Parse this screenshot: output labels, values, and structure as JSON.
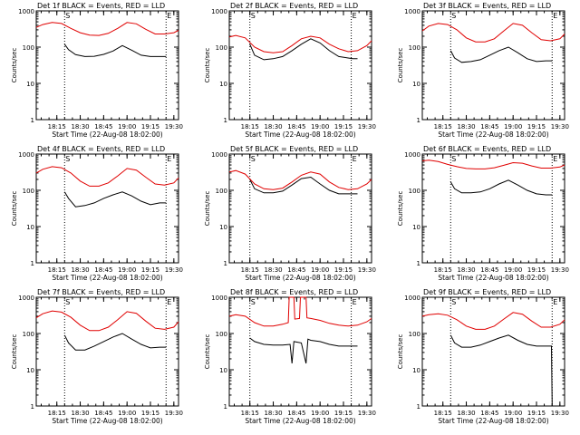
{
  "chart_data": [
    {
      "type": "line",
      "title": "Det 1f BLACK = Events, RED = LLD",
      "xlabel": "Start Time (22-Aug-08 18:02:00)",
      "ylabel": "Counts/sec",
      "ylim": [
        1,
        1000
      ],
      "yscale": "log",
      "xticks": [
        "18:15",
        "18:30",
        "18:45",
        "19:00",
        "19:15",
        "19:30"
      ],
      "yticks": [
        "1",
        "10",
        "100",
        "1000"
      ],
      "markers": [
        "S",
        "E"
      ],
      "series": [
        {
          "name": "Events",
          "color": "#000000",
          "x": [
            18.333,
            18.375,
            18.45,
            18.55,
            18.65,
            18.75,
            18.85,
            18.95,
            19.05,
            19.15,
            19.25,
            19.35,
            19.417
          ],
          "y": [
            120,
            85,
            62,
            55,
            56,
            63,
            78,
            110,
            82,
            60,
            55,
            55,
            55
          ]
        },
        {
          "name": "LLD",
          "color": "#e00000",
          "x": [
            18.03,
            18.1,
            18.2,
            18.3,
            18.4,
            18.5,
            18.6,
            18.7,
            18.8,
            18.9,
            19.0,
            19.1,
            19.2,
            19.3,
            19.4,
            19.5,
            19.55
          ],
          "y": [
            350,
            420,
            480,
            450,
            330,
            250,
            215,
            210,
            240,
            330,
            480,
            440,
            310,
            230,
            230,
            250,
            290
          ]
        }
      ]
    },
    {
      "type": "line",
      "title": "Det 2f BLACK = Events, RED = LLD",
      "xlabel": "Start Time (22-Aug-08 18:02:00)",
      "ylabel": "Counts/sec",
      "ylim": [
        1,
        1000
      ],
      "yscale": "log",
      "xticks": [
        "18:15",
        "18:30",
        "18:45",
        "19:00",
        "19:15",
        "19:30"
      ],
      "yticks": [
        "1",
        "10",
        "100",
        "1000"
      ],
      "markers": [
        "S",
        "E"
      ],
      "series": [
        {
          "name": "Events",
          "color": "#000000",
          "x": [
            18.25,
            18.3,
            18.4,
            18.5,
            18.6,
            18.7,
            18.8,
            18.9,
            19.0,
            19.1,
            19.2,
            19.3,
            19.35,
            19.4
          ],
          "y": [
            120,
            60,
            45,
            48,
            55,
            80,
            120,
            170,
            130,
            80,
            55,
            50,
            48,
            48
          ]
        },
        {
          "name": "LLD",
          "color": "#e00000",
          "x": [
            18.03,
            18.1,
            18.2,
            18.3,
            18.4,
            18.5,
            18.6,
            18.7,
            18.8,
            18.9,
            19.0,
            19.1,
            19.2,
            19.3,
            19.4,
            19.5,
            19.55
          ],
          "y": [
            190,
            210,
            180,
            100,
            75,
            70,
            75,
            110,
            170,
            200,
            180,
            120,
            90,
            75,
            80,
            110,
            150
          ]
        }
      ]
    },
    {
      "type": "line",
      "title": "Det 3f BLACK = Events, RED = LLD",
      "xlabel": "Start Time (22-Aug-08 18:02:00)",
      "ylabel": "Counts/sec",
      "ylim": [
        1,
        1000
      ],
      "yscale": "log",
      "xticks": [
        "18:15",
        "18:30",
        "18:45",
        "19:00",
        "19:15",
        "19:30"
      ],
      "yticks": [
        "1",
        "10",
        "100",
        "1000"
      ],
      "markers": [
        "S",
        "E"
      ],
      "series": [
        {
          "name": "Events",
          "color": "#000000",
          "x": [
            18.333,
            18.375,
            18.45,
            18.55,
            18.65,
            18.75,
            18.85,
            18.95,
            19.05,
            19.15,
            19.25,
            19.35,
            19.417
          ],
          "y": [
            80,
            50,
            38,
            40,
            45,
            60,
            80,
            100,
            70,
            48,
            40,
            42,
            42
          ]
        },
        {
          "name": "LLD",
          "color": "#e00000",
          "x": [
            18.03,
            18.1,
            18.2,
            18.3,
            18.4,
            18.5,
            18.6,
            18.7,
            18.8,
            18.9,
            19.0,
            19.1,
            19.2,
            19.3,
            19.4,
            19.5,
            19.55
          ],
          "y": [
            280,
            380,
            450,
            420,
            300,
            180,
            140,
            140,
            170,
            280,
            450,
            400,
            250,
            160,
            150,
            170,
            230
          ]
        }
      ]
    },
    {
      "type": "line",
      "title": "Det 4f BLACK = Events, RED = LLD",
      "xlabel": "Start Time (22-Aug-08 18:02:00)",
      "ylabel": "Counts/sec",
      "ylim": [
        1,
        1000
      ],
      "yscale": "log",
      "xticks": [
        "18:15",
        "18:30",
        "18:45",
        "19:00",
        "19:15",
        "19:30"
      ],
      "yticks": [
        "1",
        "10",
        "100",
        "1000"
      ],
      "markers": [
        "S",
        "E"
      ],
      "series": [
        {
          "name": "Events",
          "color": "#000000",
          "x": [
            18.333,
            18.375,
            18.45,
            18.55,
            18.65,
            18.75,
            18.85,
            18.95,
            19.05,
            19.15,
            19.25,
            19.35,
            19.417
          ],
          "y": [
            90,
            60,
            35,
            38,
            45,
            60,
            75,
            90,
            70,
            50,
            40,
            45,
            45
          ]
        },
        {
          "name": "LLD",
          "color": "#e00000",
          "x": [
            18.03,
            18.1,
            18.2,
            18.3,
            18.4,
            18.5,
            18.6,
            18.7,
            18.8,
            18.9,
            19.0,
            19.1,
            19.2,
            19.3,
            19.4,
            19.5,
            19.55
          ],
          "y": [
            300,
            380,
            450,
            420,
            300,
            180,
            130,
            130,
            160,
            250,
            400,
            360,
            230,
            150,
            140,
            160,
            220
          ]
        }
      ]
    },
    {
      "type": "line",
      "title": "Det 5f BLACK = Events, RED = LLD",
      "xlabel": "Start Time (22-Aug-08 18:02:00)",
      "ylabel": "Counts/sec",
      "ylim": [
        1,
        1000
      ],
      "yscale": "log",
      "xticks": [
        "18:15",
        "18:30",
        "18:45",
        "19:00",
        "19:15",
        "19:30"
      ],
      "yticks": [
        "1",
        "10",
        "100",
        "1000"
      ],
      "markers": [
        "S",
        "E"
      ],
      "series": [
        {
          "name": "Events",
          "color": "#000000",
          "x": [
            18.25,
            18.3,
            18.4,
            18.5,
            18.6,
            18.7,
            18.8,
            18.9,
            19.0,
            19.1,
            19.2,
            19.3,
            19.35,
            19.4
          ],
          "y": [
            200,
            110,
            85,
            85,
            95,
            140,
            210,
            230,
            150,
            100,
            80,
            80,
            80,
            80
          ]
        },
        {
          "name": "LLD",
          "color": "#e00000",
          "x": [
            18.03,
            18.1,
            18.2,
            18.3,
            18.4,
            18.5,
            18.6,
            18.7,
            18.8,
            18.9,
            19.0,
            19.1,
            19.2,
            19.3,
            19.4,
            19.5,
            19.55
          ],
          "y": [
            320,
            350,
            280,
            150,
            110,
            105,
            115,
            170,
            260,
            320,
            280,
            170,
            120,
            105,
            110,
            150,
            200
          ]
        }
      ]
    },
    {
      "type": "line",
      "title": "Det 6f BLACK = Events, RED = LLD",
      "xlabel": "Start Time (22-Aug-08 18:02:00)",
      "ylabel": "Counts/sec",
      "ylim": [
        1,
        1000
      ],
      "yscale": "log",
      "xticks": [
        "18:15",
        "18:30",
        "18:45",
        "19:00",
        "19:15",
        "19:30"
      ],
      "yticks": [
        "1",
        "10",
        "100",
        "1000"
      ],
      "markers": [
        "S",
        "E"
      ],
      "series": [
        {
          "name": "Events",
          "color": "#000000",
          "x": [
            18.333,
            18.375,
            18.45,
            18.55,
            18.65,
            18.75,
            18.85,
            18.95,
            19.05,
            19.15,
            19.25,
            19.35,
            19.417
          ],
          "y": [
            170,
            110,
            85,
            85,
            90,
            110,
            150,
            190,
            140,
            100,
            80,
            75,
            75
          ]
        },
        {
          "name": "LLD",
          "color": "#e00000",
          "x": [
            18.03,
            18.1,
            18.2,
            18.3,
            18.4,
            18.5,
            18.6,
            18.7,
            18.8,
            18.9,
            19.0,
            19.1,
            19.2,
            19.3,
            19.4,
            19.5,
            19.55
          ],
          "y": [
            650,
            680,
            620,
            520,
            450,
            400,
            390,
            390,
            420,
            490,
            580,
            560,
            470,
            410,
            410,
            440,
            500
          ]
        }
      ]
    },
    {
      "type": "line",
      "title": "Det 7f BLACK = Events, RED = LLD",
      "xlabel": "Start Time (22-Aug-08 18:02:00)",
      "ylabel": "Counts/sec",
      "ylim": [
        1,
        1000
      ],
      "yscale": "log",
      "xticks": [
        "18:15",
        "18:30",
        "18:45",
        "19:00",
        "19:15",
        "19:30"
      ],
      "yticks": [
        "1",
        "10",
        "100",
        "1000"
      ],
      "markers": [
        "S",
        "E"
      ],
      "series": [
        {
          "name": "Events",
          "color": "#000000",
          "x": [
            18.333,
            18.375,
            18.45,
            18.55,
            18.65,
            18.75,
            18.85,
            18.95,
            19.05,
            19.15,
            19.25,
            19.35,
            19.417
          ],
          "y": [
            90,
            55,
            35,
            35,
            45,
            60,
            80,
            100,
            70,
            50,
            40,
            42,
            42
          ]
        },
        {
          "name": "LLD",
          "color": "#e00000",
          "x": [
            18.03,
            18.1,
            18.2,
            18.3,
            18.4,
            18.5,
            18.6,
            18.7,
            18.8,
            18.9,
            19.0,
            19.1,
            19.2,
            19.3,
            19.4,
            19.5,
            19.55
          ],
          "y": [
            270,
            350,
            420,
            390,
            280,
            170,
            120,
            120,
            150,
            240,
            400,
            360,
            220,
            140,
            130,
            150,
            210
          ]
        }
      ]
    },
    {
      "type": "line",
      "title": "Det 8f BLACK = Events, RED = LLD",
      "xlabel": "Start Time (22-Aug-08 18:02:00)",
      "ylabel": "Counts/sec",
      "ylim": [
        1,
        1000
      ],
      "yscale": "log",
      "xticks": [
        "18:15",
        "18:30",
        "18:45",
        "19:00",
        "19:15",
        "19:30"
      ],
      "yticks": [
        "1",
        "10",
        "100",
        "1000"
      ],
      "markers": [
        "S",
        "E"
      ],
      "series": [
        {
          "name": "Events",
          "color": "#000000",
          "x": [
            18.25,
            18.3,
            18.4,
            18.5,
            18.6,
            18.68,
            18.7,
            18.72,
            18.8,
            18.85,
            18.87,
            18.9,
            19.0,
            19.1,
            19.2,
            19.3,
            19.4
          ],
          "y": [
            75,
            60,
            50,
            48,
            48,
            50,
            15,
            60,
            55,
            15,
            70,
            65,
            60,
            50,
            45,
            45,
            45
          ]
        },
        {
          "name": "LLD",
          "color": "#e00000",
          "x": [
            18.03,
            18.1,
            18.2,
            18.3,
            18.4,
            18.5,
            18.6,
            18.66,
            18.67,
            18.72,
            18.73,
            18.78,
            18.79,
            18.85,
            18.86,
            18.9,
            19.0,
            19.1,
            19.2,
            19.3,
            19.4,
            19.5,
            19.55
          ],
          "y": [
            300,
            330,
            300,
            200,
            160,
            160,
            180,
            200,
            1000,
            1000,
            250,
            260,
            1000,
            1000,
            270,
            260,
            230,
            190,
            170,
            160,
            170,
            210,
            260
          ]
        }
      ]
    },
    {
      "type": "line",
      "title": "Det 9f BLACK = Events, RED = LLD",
      "xlabel": "Start Time (22-Aug-08 18:02:00)",
      "ylabel": "Counts/sec",
      "ylim": [
        1,
        1000
      ],
      "yscale": "log",
      "xticks": [
        "18:15",
        "18:30",
        "18:45",
        "19:00",
        "19:15",
        "19:30"
      ],
      "yticks": [
        "1",
        "10",
        "100",
        "1000"
      ],
      "markers": [
        "S",
        "E"
      ],
      "series": [
        {
          "name": "Events",
          "color": "#000000",
          "x": [
            18.333,
            18.375,
            18.45,
            18.55,
            18.65,
            18.75,
            18.85,
            18.95,
            19.05,
            19.15,
            19.25,
            19.35,
            19.41,
            19.417
          ],
          "y": [
            90,
            55,
            42,
            42,
            48,
            60,
            75,
            90,
            65,
            50,
            45,
            45,
            45,
            1
          ]
        },
        {
          "name": "LLD",
          "color": "#e00000",
          "x": [
            18.03,
            18.1,
            18.2,
            18.3,
            18.4,
            18.5,
            18.6,
            18.7,
            18.8,
            18.9,
            19.0,
            19.1,
            19.2,
            19.3,
            19.4,
            19.5,
            19.55
          ],
          "y": [
            300,
            330,
            350,
            320,
            240,
            160,
            130,
            130,
            160,
            250,
            380,
            340,
            220,
            150,
            150,
            180,
            240
          ]
        }
      ]
    }
  ]
}
